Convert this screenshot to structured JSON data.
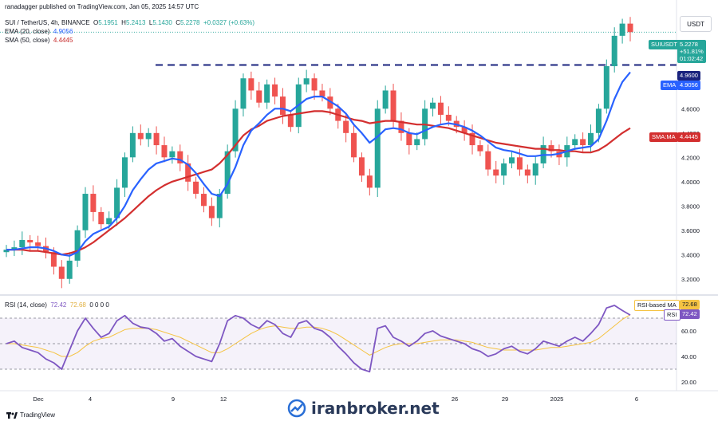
{
  "header": {
    "published": "ranadagger published on TradingView.com, Jan 05, 2025 14:57 UTC",
    "symbol": "SUI / TetherUS, 4h, BINANCE",
    "o_label": "O",
    "o_value": "5.1951",
    "h_label": "H",
    "h_value": "5.2413",
    "l_label": "L",
    "l_value": "5.1430",
    "c_label": "C",
    "c_value": "5.2278",
    "change": "+0.0327 (+0.63%)",
    "ema_label": "EMA (20, close)",
    "ema_value": "4.9056",
    "sma_label": "SMA (50, close)",
    "sma_value": "4.4445",
    "rsi_label": "RSI (14, close)",
    "rsi_value": "72.42",
    "rsi_ma_value": "72.68",
    "rsi_zeros": "0  0  0  0"
  },
  "currency_button": "USDT",
  "price_tags": {
    "symbol_tag": "SUIUSDT",
    "last_price": "5.2278",
    "change_pct": "+51.81%",
    "countdown": "01:02:42",
    "level": "4.9600",
    "ema_tag": "EMA",
    "ema_value": "4.9056",
    "sma_tag": "SMA:MA",
    "sma_value": "4.4445",
    "rsi_ma_tag": "RSI-based MA",
    "rsi_ma_value": "72.68",
    "rsi_tag": "RSI",
    "rsi_value": "72.42"
  },
  "watermark": "iranbroker.net",
  "tv_brand": "TradingView",
  "colors": {
    "up": "#26a69a",
    "down": "#ef5350",
    "ema": "#2962ff",
    "sma": "#d32f2f",
    "rsi": "#7e57c2",
    "rsi_ma": "#f5c342",
    "level": "#1a237e"
  },
  "chart_data": [
    {
      "type": "line",
      "title": "SUI / TetherUS, 4h, BINANCE",
      "y_ticks": [
        "5.0000",
        "4.8000",
        "4.6000",
        "4.4000",
        "4.2000",
        "4.0000",
        "3.8000",
        "3.6000",
        "3.4000",
        "3.2000"
      ],
      "ylim": [
        3.1,
        5.35
      ],
      "x_ticks": [
        "Dec",
        "4",
        "9",
        "12",
        "26",
        "29",
        "2025",
        "6"
      ],
      "horizontal_level": 4.96,
      "series": [
        {
          "name": "SUIUSDT",
          "values": [
            3.44,
            3.46,
            3.52,
            3.5,
            3.47,
            3.42,
            3.3,
            3.2,
            3.35,
            3.6,
            3.9,
            3.75,
            3.65,
            3.7,
            3.95,
            4.2,
            4.4,
            4.35,
            4.4,
            4.3,
            4.2,
            4.25,
            4.15,
            4.0,
            3.9,
            3.8,
            3.7,
            3.9,
            4.25,
            4.6,
            4.85,
            4.75,
            4.65,
            4.8,
            4.7,
            4.55,
            4.45,
            4.8,
            4.85,
            4.75,
            4.7,
            4.6,
            4.5,
            4.4,
            4.2,
            4.05,
            3.95,
            4.6,
            4.75,
            4.5,
            4.4,
            4.3,
            4.35,
            4.6,
            4.65,
            4.55,
            4.5,
            4.45,
            4.4,
            4.3,
            4.25,
            4.1,
            4.05,
            4.15,
            4.2,
            4.1,
            4.05,
            4.15,
            4.3,
            4.25,
            4.2,
            4.3,
            4.35,
            4.3,
            4.4,
            4.6,
            4.95,
            5.2,
            5.3,
            5.23
          ]
        },
        {
          "name": "EMA",
          "values": [
            3.44,
            3.44,
            3.45,
            3.46,
            3.46,
            3.45,
            3.43,
            3.4,
            3.39,
            3.42,
            3.51,
            3.57,
            3.6,
            3.63,
            3.7,
            3.8,
            3.93,
            4.02,
            4.1,
            4.15,
            4.17,
            4.19,
            4.18,
            4.14,
            4.07,
            3.98,
            3.9,
            3.88,
            3.98,
            4.12,
            4.3,
            4.42,
            4.48,
            4.55,
            4.6,
            4.6,
            4.58,
            4.63,
            4.68,
            4.7,
            4.7,
            4.66,
            4.62,
            4.56,
            4.47,
            4.4,
            4.32,
            4.37,
            4.43,
            4.44,
            4.43,
            4.4,
            4.39,
            4.42,
            4.45,
            4.47,
            4.48,
            4.47,
            4.45,
            4.42,
            4.38,
            4.33,
            4.28,
            4.26,
            4.25,
            4.23,
            4.21,
            4.21,
            4.22,
            4.22,
            4.23,
            4.25,
            4.27,
            4.28,
            4.29,
            4.35,
            4.5,
            4.68,
            4.82,
            4.9
          ]
        },
        {
          "name": "SMA",
          "values": [
            3.44,
            3.44,
            3.44,
            3.43,
            3.43,
            3.42,
            3.41,
            3.4,
            3.41,
            3.43,
            3.46,
            3.5,
            3.55,
            3.6,
            3.65,
            3.7,
            3.76,
            3.82,
            3.88,
            3.93,
            3.97,
            4.0,
            4.02,
            4.04,
            4.06,
            4.08,
            4.1,
            4.15,
            4.22,
            4.3,
            4.38,
            4.43,
            4.46,
            4.5,
            4.52,
            4.54,
            4.55,
            4.56,
            4.57,
            4.58,
            4.58,
            4.57,
            4.55,
            4.53,
            4.51,
            4.5,
            4.48,
            4.49,
            4.5,
            4.5,
            4.49,
            4.48,
            4.47,
            4.47,
            4.46,
            4.45,
            4.44,
            4.42,
            4.4,
            4.38,
            4.36,
            4.34,
            4.32,
            4.31,
            4.3,
            4.29,
            4.28,
            4.27,
            4.27,
            4.26,
            4.26,
            4.25,
            4.25,
            4.24,
            4.24,
            4.26,
            4.3,
            4.35,
            4.4,
            4.44
          ]
        }
      ]
    },
    {
      "type": "line",
      "title": "RSI (14, close)",
      "y_ticks": [
        "60.00",
        "40.00",
        "20.00"
      ],
      "ylim": [
        15,
        85
      ],
      "bands": [
        70,
        50,
        30
      ],
      "series": [
        {
          "name": "RSI",
          "values": [
            50,
            52,
            47,
            45,
            43,
            38,
            35,
            30,
            45,
            60,
            70,
            62,
            55,
            58,
            68,
            72,
            66,
            63,
            62,
            58,
            52,
            54,
            48,
            44,
            40,
            38,
            36,
            50,
            68,
            72,
            70,
            65,
            62,
            68,
            65,
            58,
            55,
            66,
            68,
            62,
            60,
            55,
            48,
            42,
            35,
            30,
            28,
            62,
            64,
            55,
            52,
            48,
            52,
            58,
            60,
            56,
            54,
            52,
            50,
            46,
            44,
            40,
            42,
            46,
            48,
            44,
            42,
            46,
            52,
            50,
            48,
            52,
            55,
            52,
            58,
            65,
            78,
            80,
            76,
            72.42
          ]
        },
        {
          "name": "RSI-based MA",
          "values": [
            50,
            50,
            49,
            48,
            47,
            45,
            43,
            40,
            40,
            43,
            48,
            52,
            54,
            55,
            58,
            61,
            62,
            62,
            62,
            61,
            59,
            57,
            55,
            52,
            49,
            46,
            43,
            43,
            46,
            50,
            54,
            58,
            61,
            63,
            64,
            63,
            62,
            62,
            63,
            63,
            62,
            60,
            57,
            53,
            49,
            45,
            41,
            44,
            47,
            49,
            50,
            50,
            50,
            51,
            52,
            53,
            53,
            53,
            52,
            51,
            49,
            47,
            46,
            45,
            45,
            45,
            45,
            45,
            46,
            47,
            47,
            48,
            49,
            50,
            51,
            54,
            59,
            64,
            69,
            72.68
          ]
        }
      ]
    }
  ]
}
